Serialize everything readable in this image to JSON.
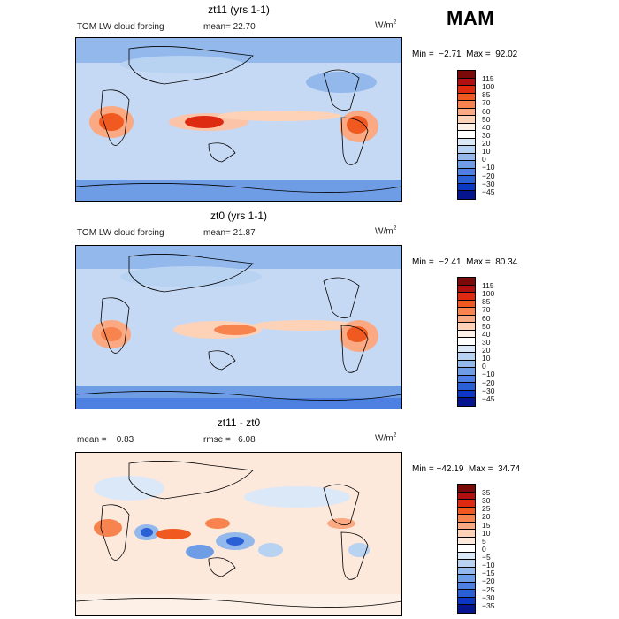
{
  "season": "MAM",
  "panels": [
    {
      "id": "zt11",
      "title": "zt11 (yrs 1-1)",
      "left_label": "TOM LW cloud forcing",
      "mean_text": "mean=  22.70",
      "unit_base": "W/m",
      "unit_exp": "2",
      "minmax": "Min =  −2.71  Max =  92.02",
      "colorbar": {
        "colors": [
          "#7a0a0a",
          "#b01010",
          "#dd2a10",
          "#f05a20",
          "#f7834e",
          "#fba982",
          "#fdd2b6",
          "#fdf0e6",
          "#ffffff",
          "#dbe8f8",
          "#b8d2f2",
          "#93b8ec",
          "#6e9de6",
          "#4d80e0",
          "#2a5fd6",
          "#0b38c2",
          "#05158e"
        ],
        "ticks": [
          "115",
          "100",
          "85",
          "70",
          "60",
          "50",
          "40",
          "30",
          "20",
          "10",
          "0",
          "−10",
          "−20",
          "−30",
          "−45"
        ]
      }
    },
    {
      "id": "zt0",
      "title": "zt0 (yrs 1-1)",
      "left_label": "TOM LW cloud forcing",
      "mean_text": "mean=  21.87",
      "unit_base": "W/m",
      "unit_exp": "2",
      "minmax": "Min =  −2.41  Max =  80.34",
      "colorbar": {
        "colors": [
          "#7a0a0a",
          "#b01010",
          "#dd2a10",
          "#f05a20",
          "#f7834e",
          "#fba982",
          "#fdd2b6",
          "#fdf0e6",
          "#ffffff",
          "#dbe8f8",
          "#b8d2f2",
          "#93b8ec",
          "#6e9de6",
          "#4d80e0",
          "#2a5fd6",
          "#0b38c2",
          "#05158e"
        ],
        "ticks": [
          "115",
          "100",
          "85",
          "70",
          "60",
          "50",
          "40",
          "30",
          "20",
          "10",
          "0",
          "−10",
          "−20",
          "−30",
          "−45"
        ]
      }
    },
    {
      "id": "diff",
      "title": "zt11 - zt0",
      "left_label": "mean =    0.83",
      "mean_text": "rmse =   6.08",
      "unit_base": "W/m",
      "unit_exp": "2",
      "minmax": "Min = −42.19  Max =  34.74",
      "colorbar": {
        "colors": [
          "#7a0a0a",
          "#b01010",
          "#dd2a10",
          "#f05a20",
          "#f7834e",
          "#fba982",
          "#fdd2b6",
          "#fde8dc",
          "#ffffff",
          "#dbe8f8",
          "#b8d2f2",
          "#93b8ec",
          "#6e9de6",
          "#4d80e0",
          "#2a5fd6",
          "#0b38c2",
          "#05158e"
        ],
        "ticks": [
          "35",
          "30",
          "25",
          "20",
          "15",
          "10",
          "5",
          "0",
          "−5",
          "−10",
          "−15",
          "−20",
          "−25",
          "−30",
          "−35"
        ]
      }
    }
  ],
  "chart_data": [
    {
      "type": "heatmap",
      "title": "zt11 (yrs 1-1)",
      "variable": "TOM LW cloud forcing",
      "units": "W/m2",
      "mean": 22.7,
      "min": -2.71,
      "max": 92.02,
      "levels": [
        -45,
        -30,
        -20,
        -10,
        0,
        10,
        20,
        30,
        40,
        50,
        60,
        70,
        85,
        100,
        115
      ]
    },
    {
      "type": "heatmap",
      "title": "zt0 (yrs 1-1)",
      "variable": "TOM LW cloud forcing",
      "units": "W/m2",
      "mean": 21.87,
      "min": -2.41,
      "max": 80.34,
      "levels": [
        -45,
        -30,
        -20,
        -10,
        0,
        10,
        20,
        30,
        40,
        50,
        60,
        70,
        85,
        100,
        115
      ]
    },
    {
      "type": "heatmap",
      "title": "zt11 - zt0",
      "units": "W/m2",
      "mean": 0.83,
      "rmse": 6.08,
      "min": -42.19,
      "max": 34.74,
      "levels": [
        -35,
        -30,
        -25,
        -20,
        -15,
        -10,
        -5,
        0,
        5,
        10,
        15,
        20,
        25,
        30,
        35
      ]
    }
  ]
}
